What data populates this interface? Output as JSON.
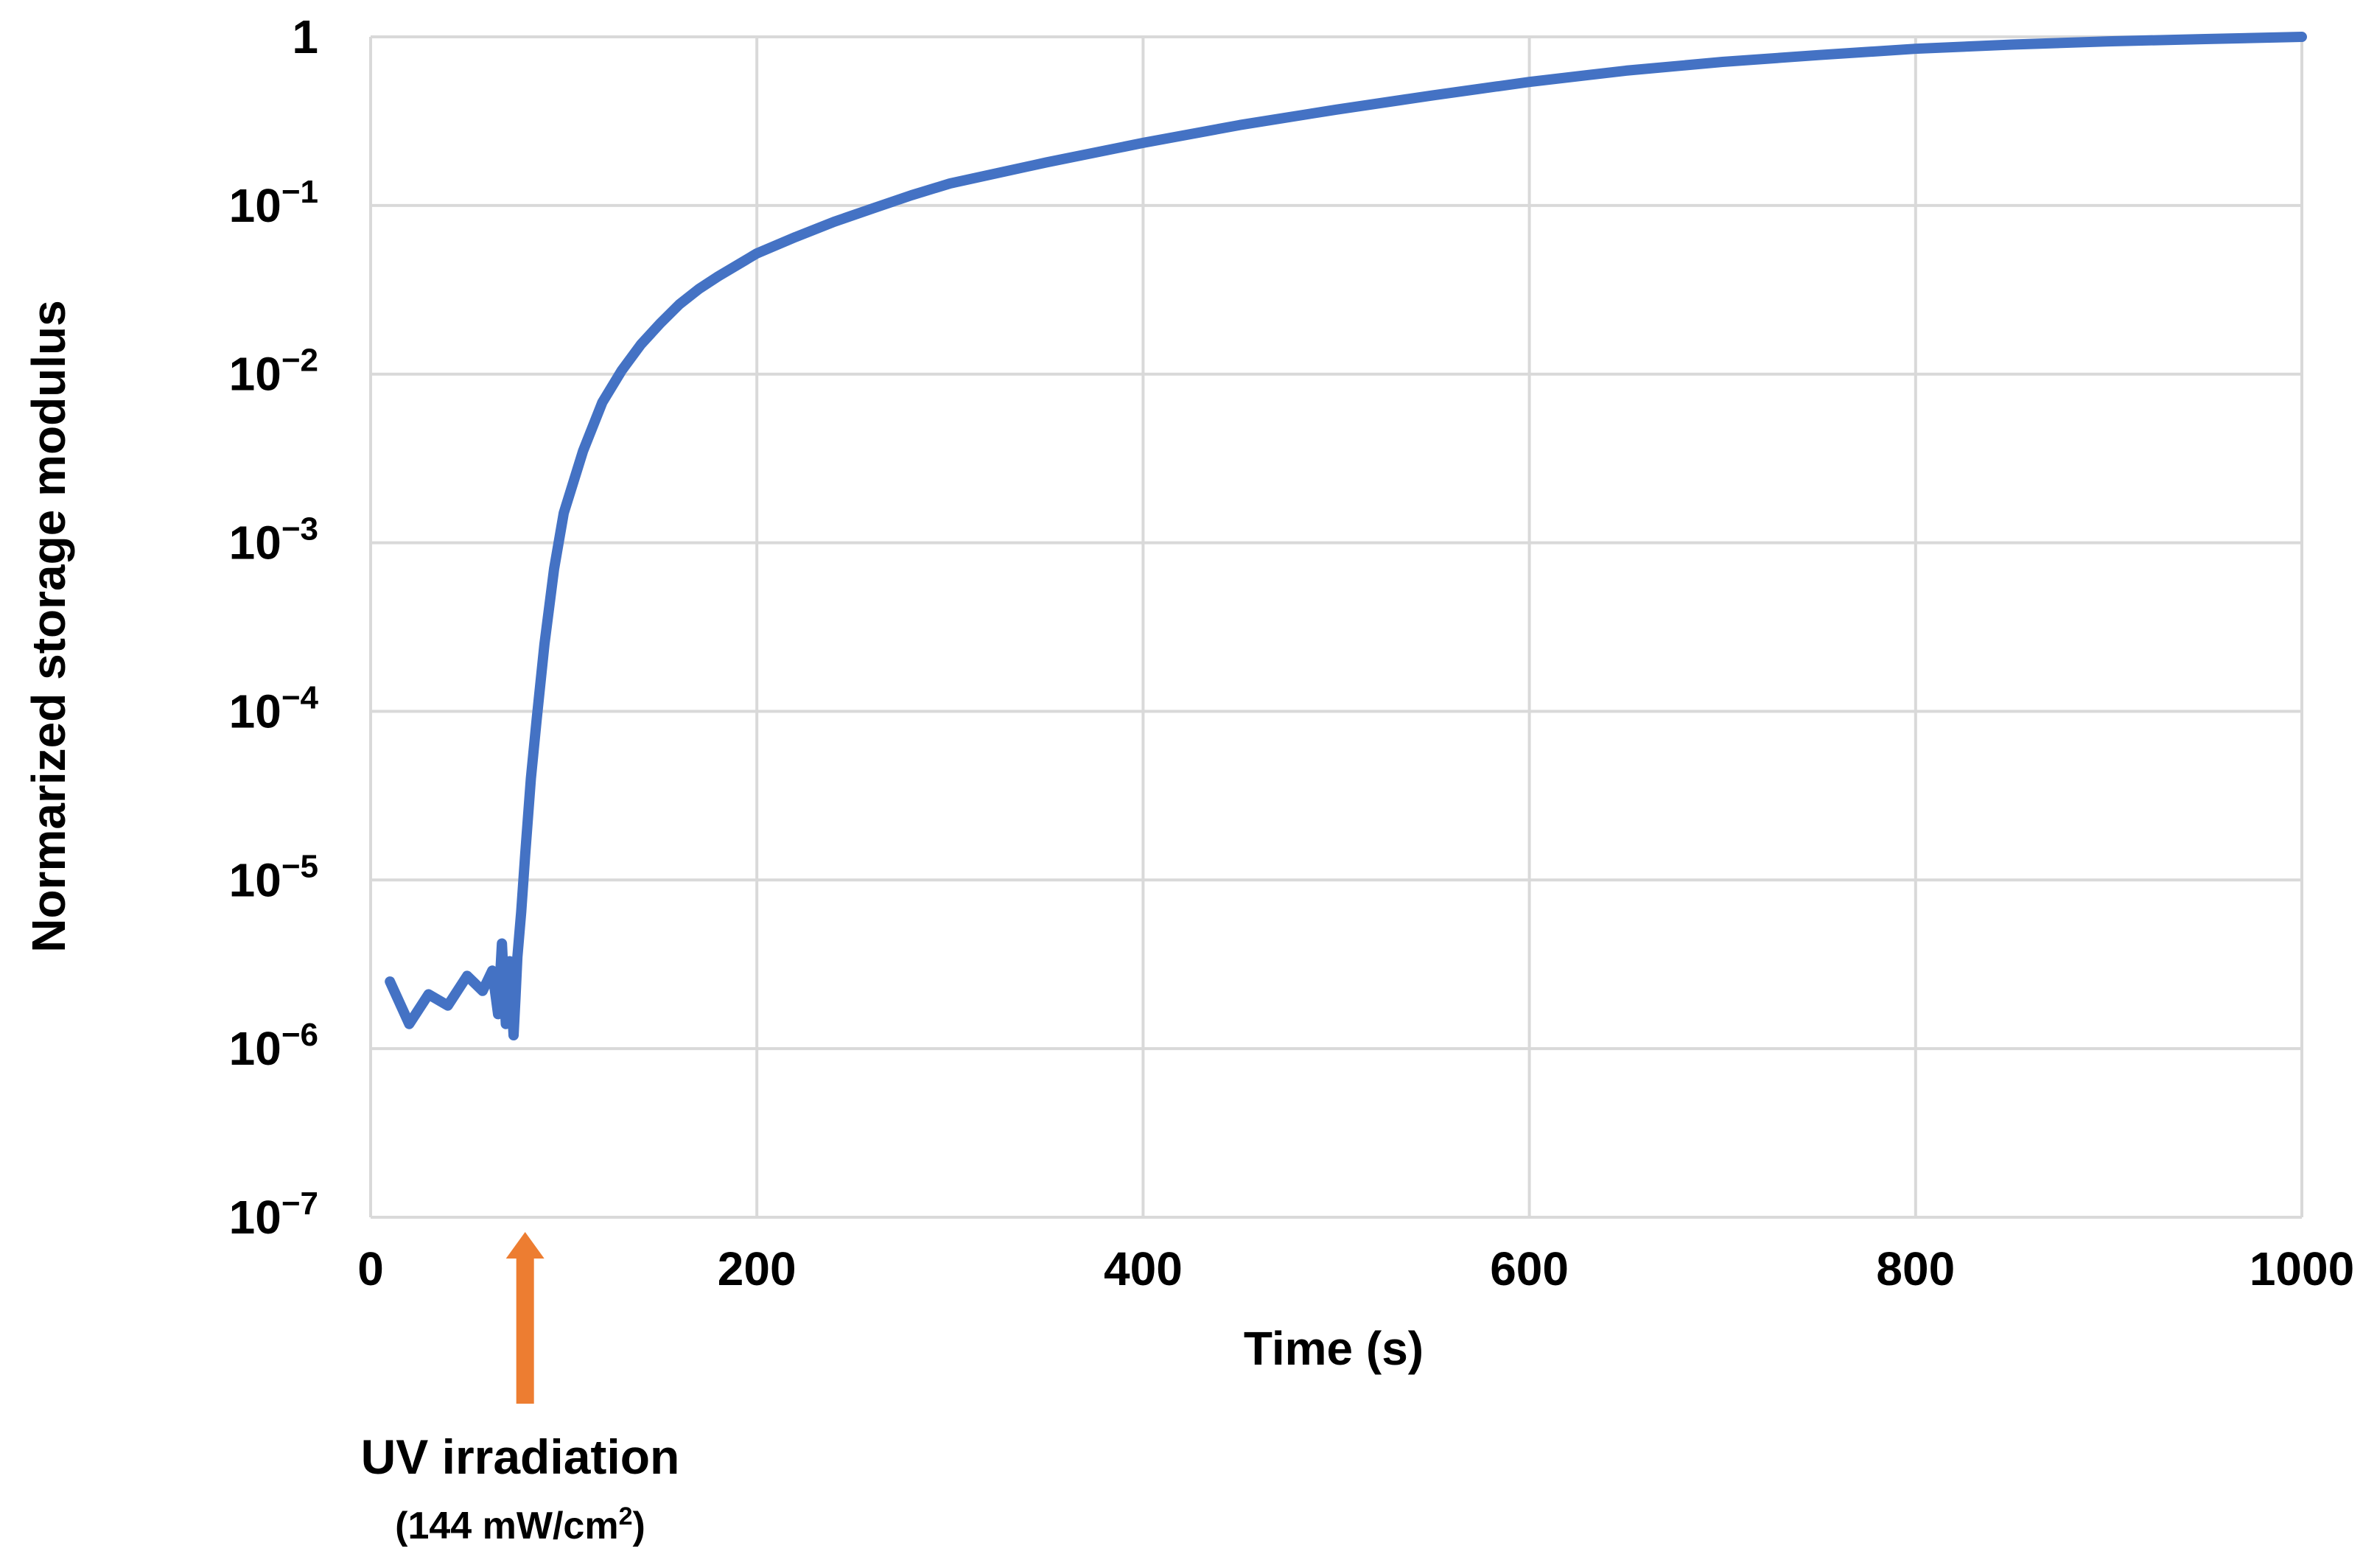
{
  "chart_data": {
    "type": "line",
    "title": "",
    "xlabel": "Time (s)",
    "ylabel": "Normarized storage modulus",
    "xlim": [
      0,
      1000
    ],
    "ylim": [
      1e-07,
      1
    ],
    "yscale": "log",
    "grid": true,
    "x_ticks": [
      {
        "value": 0,
        "label": "0"
      },
      {
        "value": 200,
        "label": "200"
      },
      {
        "value": 400,
        "label": "400"
      },
      {
        "value": 600,
        "label": "600"
      },
      {
        "value": 800,
        "label": "800"
      },
      {
        "value": 1000,
        "label": "1000"
      }
    ],
    "y_ticks": [
      {
        "value": 1,
        "base": "1",
        "exp": ""
      },
      {
        "value": 0.1,
        "base": "10",
        "exp": "−1"
      },
      {
        "value": 0.01,
        "base": "10",
        "exp": "−2"
      },
      {
        "value": 0.001,
        "base": "10",
        "exp": "−3"
      },
      {
        "value": 0.0001,
        "base": "10",
        "exp": "−4"
      },
      {
        "value": 1e-05,
        "base": "10",
        "exp": "−5"
      },
      {
        "value": 1e-06,
        "base": "10",
        "exp": "−6"
      },
      {
        "value": 1e-07,
        "base": "10",
        "exp": "−7"
      }
    ],
    "series": [
      {
        "color": "#4472C4",
        "x": [
          10,
          20,
          30,
          40,
          50,
          58,
          63,
          66,
          68,
          70,
          72,
          74,
          75,
          76,
          78,
          80,
          83,
          86,
          90,
          95,
          100,
          110,
          120,
          130,
          140,
          150,
          160,
          170,
          180,
          200,
          220,
          240,
          260,
          280,
          300,
          350,
          400,
          450,
          500,
          550,
          600,
          650,
          700,
          750,
          800,
          850,
          900,
          950,
          1000
        ],
        "y": [
          2.5e-06,
          1.4e-06,
          2.1e-06,
          1.8e-06,
          2.7e-06,
          2.2e-06,
          2.9e-06,
          1.6e-06,
          4.2e-06,
          1.4e-06,
          3.3e-06,
          1.2e-06,
          2e-06,
          3.5e-06,
          6.5e-06,
          1.4e-05,
          4e-05,
          9e-05,
          0.00025,
          0.0007,
          0.0015,
          0.0035,
          0.0068,
          0.0105,
          0.015,
          0.02,
          0.026,
          0.032,
          0.038,
          0.052,
          0.065,
          0.08,
          0.096,
          0.115,
          0.135,
          0.18,
          0.235,
          0.3,
          0.37,
          0.45,
          0.54,
          0.63,
          0.71,
          0.78,
          0.85,
          0.9,
          0.94,
          0.97,
          1.0
        ]
      }
    ],
    "annotation": {
      "x": 80,
      "arrow_color": "#ED7D31",
      "label": "UV irradiation",
      "sublabel_prefix": "(144 mW/cm",
      "sublabel_sup": "2",
      "sublabel_suffix": ")"
    }
  }
}
